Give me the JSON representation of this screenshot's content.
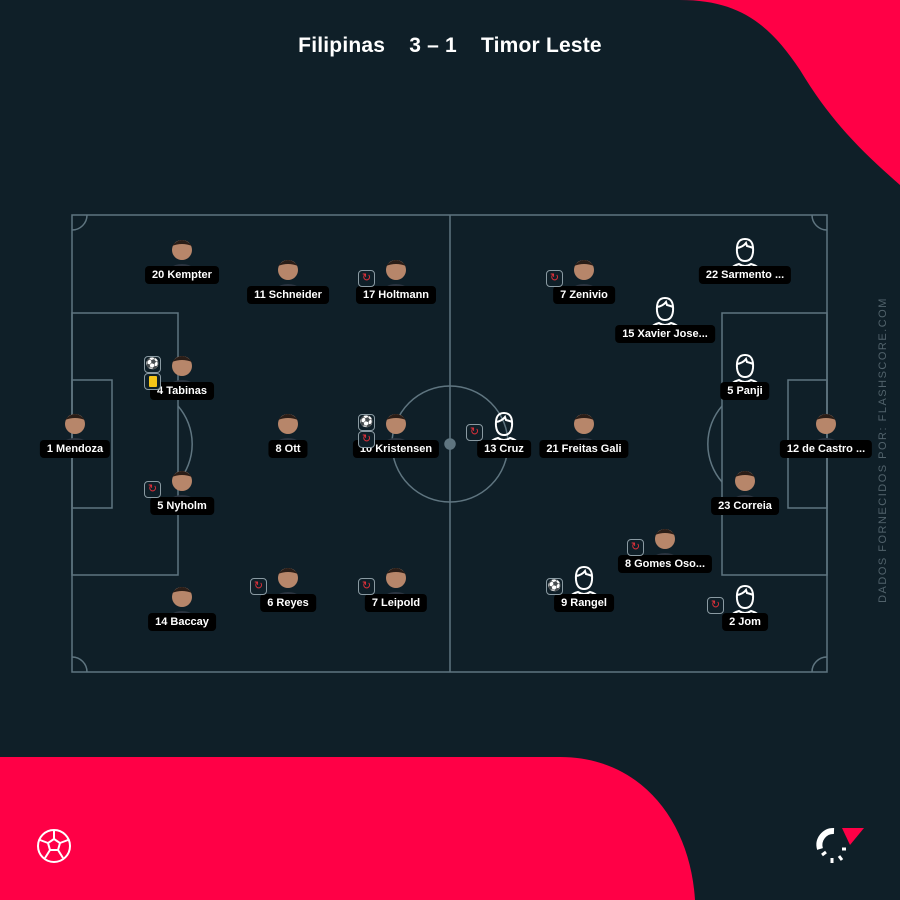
{
  "header": {
    "home_team": "Filipinas",
    "score": "3 – 1",
    "away_team": "Timor Leste"
  },
  "credit": "DADOS FORNECIDOS POR: FLASHSCORE.COM",
  "colors": {
    "background": "#0f1f28",
    "accent": "#ff0046",
    "pitch_lines": "#5f7580",
    "label_bg": "#000000"
  },
  "home_players": [
    {
      "label": "20 Kempter",
      "icons": []
    },
    {
      "label": "11 Schneider",
      "icons": []
    },
    {
      "label": "17 Holtmann",
      "icons": [
        "substitution-icon"
      ]
    },
    {
      "label": "4 Tabinas",
      "icons": [
        "goal-icon",
        "yellow-card-icon"
      ]
    },
    {
      "label": "1 Mendoza",
      "icons": []
    },
    {
      "label": "8 Ott",
      "icons": []
    },
    {
      "label": "10 Kristensen",
      "icons": [
        "goal-icon",
        "substitution-icon"
      ]
    },
    {
      "label": "5 Nyholm",
      "icons": [
        "substitution-icon"
      ]
    },
    {
      "label": "14 Baccay",
      "icons": []
    },
    {
      "label": "6 Reyes",
      "icons": [
        "substitution-icon"
      ]
    },
    {
      "label": "7 Leipold",
      "icons": [
        "substitution-icon"
      ]
    }
  ],
  "away_players": [
    {
      "label": "7 Zenivio",
      "icons": [
        "substitution-icon"
      ]
    },
    {
      "label": "22 Sarmento ...",
      "icons": []
    },
    {
      "label": "15 Xavier Jose...",
      "icons": []
    },
    {
      "label": "5 Panji",
      "icons": []
    },
    {
      "label": "13 Cruz",
      "icons": [
        "substitution-icon"
      ]
    },
    {
      "label": "21 Freitas Gali",
      "icons": []
    },
    {
      "label": "12 de Castro ...",
      "icons": []
    },
    {
      "label": "23 Correia",
      "icons": []
    },
    {
      "label": "8 Gomes Oso...",
      "icons": [
        "substitution-icon"
      ]
    },
    {
      "label": "9 Rangel",
      "icons": [
        "goal-icon"
      ]
    },
    {
      "label": "2 Jom",
      "icons": [
        "substitution-icon"
      ]
    }
  ]
}
